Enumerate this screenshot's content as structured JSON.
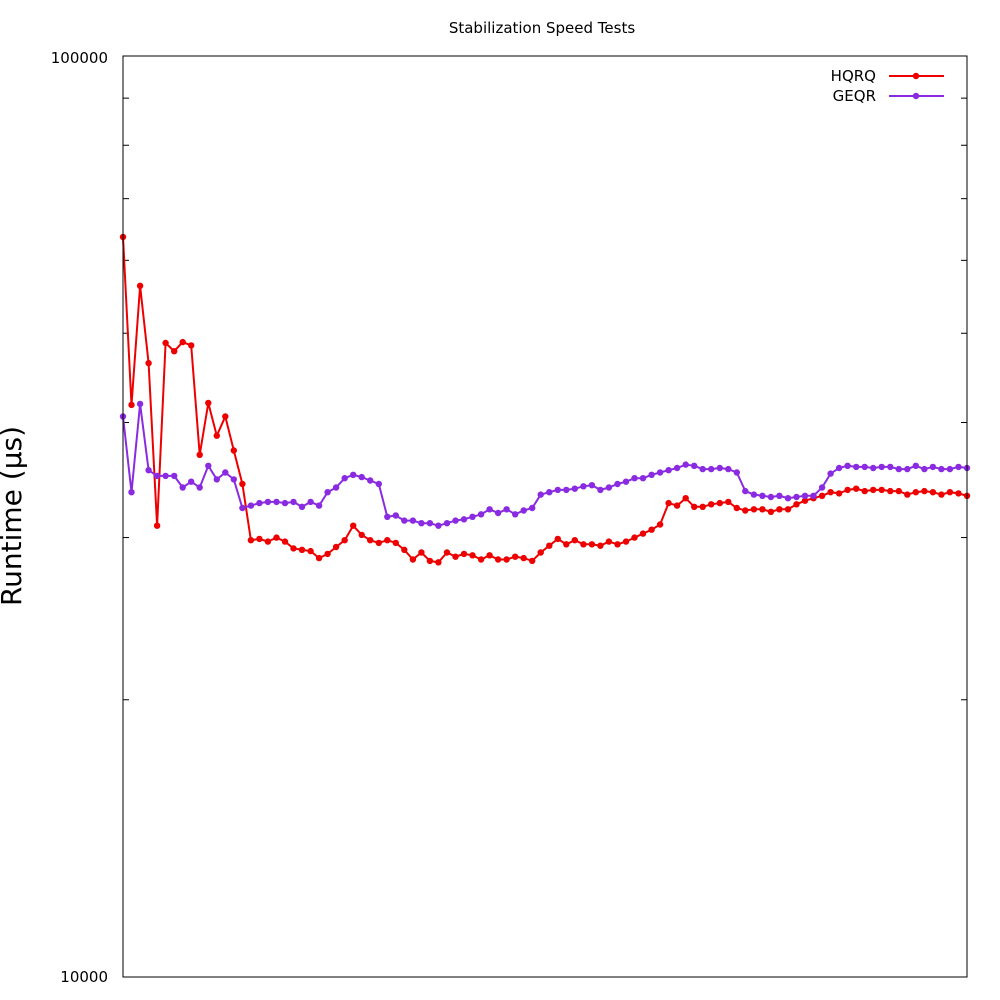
{
  "chart_data": {
    "type": "line",
    "title": "Stabilization Speed Tests",
    "xlabel": "",
    "ylabel": "Runtime (µs)",
    "yscale": "log",
    "ylim": [
      10000,
      100000
    ],
    "y_tick_labels": [
      "10000",
      "100000"
    ],
    "xlim": [
      0,
      99
    ],
    "legend_position": "top-right",
    "grid": false,
    "x": [
      0,
      1,
      2,
      3,
      4,
      5,
      6,
      7,
      8,
      9,
      10,
      11,
      12,
      13,
      14,
      15,
      16,
      17,
      18,
      19,
      20,
      21,
      22,
      23,
      24,
      25,
      26,
      27,
      28,
      29,
      30,
      31,
      32,
      33,
      34,
      35,
      36,
      37,
      38,
      39,
      40,
      41,
      42,
      43,
      44,
      45,
      46,
      47,
      48,
      49,
      50,
      51,
      52,
      53,
      54,
      55,
      56,
      57,
      58,
      59,
      60,
      61,
      62,
      63,
      64,
      65,
      66,
      67,
      68,
      69,
      70,
      71,
      72,
      73,
      74,
      75,
      76,
      77,
      78,
      79,
      80,
      81,
      82,
      83,
      84,
      85,
      86,
      87,
      88,
      89,
      90,
      91,
      92,
      93,
      94,
      95,
      96,
      97,
      98,
      99
    ],
    "series": [
      {
        "name": "HQRQ",
        "color": "#ee0000",
        "values": [
          63600,
          41800,
          56300,
          46400,
          30900,
          48800,
          47800,
          48900,
          48500,
          36900,
          42000,
          38700,
          40600,
          37300,
          34300,
          29800,
          29900,
          29700,
          30000,
          29700,
          29200,
          29100,
          29000,
          28500,
          28800,
          29300,
          29800,
          30900,
          30200,
          29800,
          29600,
          29800,
          29600,
          29100,
          28400,
          28900,
          28300,
          28200,
          28900,
          28600,
          28800,
          28700,
          28400,
          28700,
          28400,
          28400,
          28600,
          28500,
          28300,
          28900,
          29400,
          29900,
          29500,
          29800,
          29500,
          29500,
          29400,
          29700,
          29500,
          29700,
          30000,
          30300,
          30600,
          31000,
          32700,
          32500,
          33100,
          32400,
          32400,
          32600,
          32700,
          32800,
          32300,
          32100,
          32200,
          32200,
          32000,
          32200,
          32200,
          32600,
          32900,
          33100,
          33300,
          33600,
          33500,
          33800,
          33900,
          33700,
          33800,
          33800,
          33700,
          33700,
          33400,
          33600,
          33700,
          33600,
          33400,
          33600,
          33500,
          33300
        ]
      },
      {
        "name": "GEQR",
        "color": "#8a2be2",
        "values": [
          40600,
          33600,
          41900,
          35500,
          35000,
          35000,
          35000,
          34000,
          34500,
          34000,
          35900,
          34700,
          35300,
          34700,
          32300,
          32500,
          32700,
          32800,
          32800,
          32700,
          32800,
          32400,
          32800,
          32500,
          33600,
          34000,
          34800,
          35100,
          34900,
          34600,
          34300,
          31600,
          31700,
          31300,
          31300,
          31100,
          31100,
          30900,
          31100,
          31300,
          31400,
          31600,
          31800,
          32200,
          31900,
          32200,
          31800,
          32100,
          32300,
          33400,
          33600,
          33800,
          33800,
          33900,
          34100,
          34200,
          33800,
          34000,
          34300,
          34500,
          34800,
          34800,
          35100,
          35300,
          35500,
          35700,
          36000,
          35900,
          35600,
          35600,
          35700,
          35600,
          35300,
          33700,
          33400,
          33300,
          33200,
          33300,
          33100,
          33200,
          33300,
          33300,
          34000,
          35200,
          35700,
          35900,
          35800,
          35800,
          35700,
          35800,
          35800,
          35600,
          35600,
          35900,
          35600,
          35800,
          35600,
          35600,
          35800,
          35700
        ]
      }
    ]
  }
}
